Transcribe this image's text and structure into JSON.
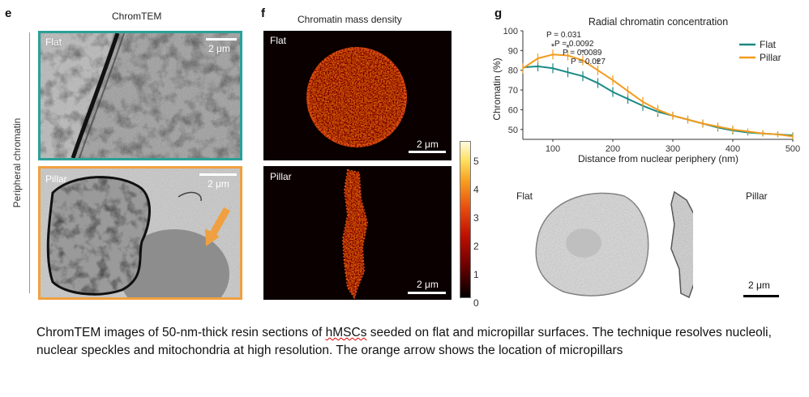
{
  "panel_e": {
    "letter": "e",
    "title": "ChromTEM",
    "side_label": "Peripheral chromatin",
    "flat_label": "Flat",
    "pillar_label": "Pillar",
    "scale_flat": "2 μm",
    "scale_pillar": "2 μm",
    "flat_border_color": "#2aa198",
    "pillar_border_color": "#f0a040"
  },
  "panel_f": {
    "letter": "f",
    "title": "Chromatin mass density",
    "flat_label": "Flat",
    "pillar_label": "Pillar",
    "scale_flat": "2 μm",
    "scale_pillar": "2 μm",
    "colorbar_ticks": [
      "5",
      "4",
      "3",
      "2",
      "1",
      "0"
    ]
  },
  "panel_g": {
    "letter": "g",
    "flat_label": "Flat",
    "pillar_label": "Pillar",
    "scale": "2 μm"
  },
  "chart_data": {
    "type": "line",
    "title": "Radial chromatin concentration",
    "xlabel": "Distance from nuclear periphery (nm)",
    "ylabel": "Chromatin (%)",
    "xlim": [
      50,
      500
    ],
    "ylim": [
      45,
      100
    ],
    "xticks": [
      "100",
      "200",
      "300",
      "400",
      "500"
    ],
    "yticks": [
      "50",
      "60",
      "70",
      "80",
      "90",
      "100"
    ],
    "legend_position": "top-right",
    "x": [
      50,
      75,
      100,
      125,
      150,
      175,
      200,
      225,
      250,
      275,
      300,
      325,
      350,
      375,
      400,
      425,
      450,
      475,
      500
    ],
    "series": [
      {
        "name": "Flat",
        "color": "#1a8a86",
        "values": [
          81.5,
          82,
          81,
          79,
          77,
          73.5,
          69,
          65.5,
          62,
          59,
          57,
          55,
          53,
          51,
          49.5,
          48.5,
          48,
          47.5,
          47
        ],
        "err": [
          2.5,
          2.5,
          2.5,
          2.5,
          2.5,
          2.5,
          2.5,
          2.5,
          2.5,
          2.5,
          2,
          2,
          2,
          2,
          2,
          1.5,
          1.5,
          1.5,
          1.5
        ]
      },
      {
        "name": "Pillar",
        "color": "#f39c1f",
        "values": [
          81,
          86,
          88,
          87.5,
          85,
          80,
          75,
          69.5,
          64,
          60,
          57,
          55,
          53,
          51.5,
          50,
          49,
          48,
          47.5,
          46.5
        ],
        "err": [
          2.5,
          2.5,
          2.5,
          2.5,
          2.5,
          2.5,
          2.5,
          2.5,
          2.5,
          2.5,
          2,
          2,
          2,
          2,
          2,
          1.5,
          1.5,
          1.5,
          1.5
        ]
      }
    ],
    "annotations": [
      {
        "text": "P = 0.031",
        "star": "*",
        "x": 100
      },
      {
        "text": "P = 0.0092",
        "star": "*",
        "x": 125
      },
      {
        "text": "P = 0.0089",
        "star": "*",
        "x": 150
      },
      {
        "text": "P = 0.027",
        "star": "*",
        "x": 175
      }
    ]
  },
  "caption": {
    "part1": "ChromTEM images of 50-nm-thick resin sections of ",
    "underlined": "hMSCs",
    "part2": " seeded on flat and micropillar surfaces. The technique resolves nucleoli, nuclear speckles and mitochondria at high resolution. The orange arrow shows the location of micropillars"
  }
}
